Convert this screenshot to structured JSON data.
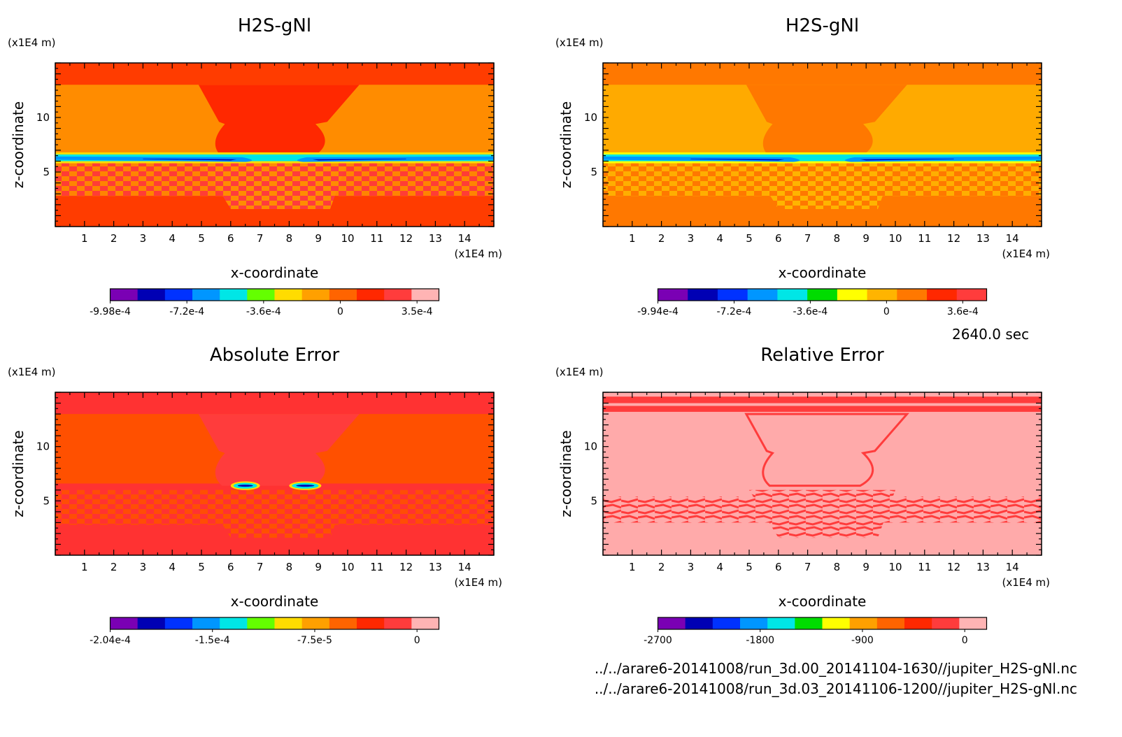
{
  "time_label": "2640.0 sec",
  "footer_lines": [
    "../../arare6-20141008/run_3d.00_20141104-1630//jupiter_H2S-gNl.nc",
    "../../arare6-20141008/run_3d.03_20141106-1200//jupiter_H2S-gNl.nc"
  ],
  "chart_data": [
    {
      "type": "heatmap",
      "title": "H2S-gNl",
      "xlabel": "x-coordinate",
      "ylabel": "z-coordinate",
      "x_unit": "(x1E4 m)",
      "y_unit": "(x1E4 m)",
      "xlim": [
        0,
        15
      ],
      "ylim": [
        0,
        15
      ],
      "x_ticks": [
        1,
        2,
        3,
        4,
        5,
        6,
        7,
        8,
        9,
        10,
        11,
        12,
        13,
        14
      ],
      "y_ticks": [
        5,
        10
      ],
      "colorbar": {
        "colors": [
          "#7a00b4",
          "#0000b4",
          "#0032ff",
          "#0096ff",
          "#00e6e6",
          "#64ff00",
          "#ffdc00",
          "#ffa000",
          "#ff6400",
          "#ff2800",
          "#ff3c3c",
          "#ffb4b4"
        ],
        "tick_labels": [
          "-9.98e-4",
          "-7.2e-4",
          "-3.6e-4",
          "0",
          "3.5e-4"
        ]
      }
    },
    {
      "type": "heatmap",
      "title": "H2S-gNl",
      "xlabel": "x-coordinate",
      "ylabel": "z-coordinate",
      "x_unit": "(x1E4 m)",
      "y_unit": "(x1E4 m)",
      "xlim": [
        0,
        15
      ],
      "ylim": [
        0,
        15
      ],
      "x_ticks": [
        1,
        2,
        3,
        4,
        5,
        6,
        7,
        8,
        9,
        10,
        11,
        12,
        13,
        14
      ],
      "y_ticks": [
        5,
        10
      ],
      "colorbar": {
        "colors": [
          "#7a00b4",
          "#0000b4",
          "#0032ff",
          "#0096ff",
          "#00e6e6",
          "#00dc00",
          "#ffff00",
          "#ffb400",
          "#ff7800",
          "#ff2800",
          "#ff3c3c"
        ],
        "tick_labels": [
          "-9.94e-4",
          "-7.2e-4",
          "-3.6e-4",
          "0",
          "3.6e-4"
        ]
      }
    },
    {
      "type": "heatmap",
      "title": "Absolute Error",
      "xlabel": "x-coordinate",
      "ylabel": "z-coordinate",
      "x_unit": "(x1E4 m)",
      "y_unit": "(x1E4 m)",
      "xlim": [
        0,
        15
      ],
      "ylim": [
        0,
        15
      ],
      "x_ticks": [
        1,
        2,
        3,
        4,
        5,
        6,
        7,
        8,
        9,
        10,
        11,
        12,
        13,
        14
      ],
      "y_ticks": [
        5,
        10
      ],
      "colorbar": {
        "colors": [
          "#7a00b4",
          "#0000b4",
          "#0032ff",
          "#0096ff",
          "#00e6e6",
          "#64ff00",
          "#ffdc00",
          "#ffa000",
          "#ff6400",
          "#ff2800",
          "#ff3c3c",
          "#ffb4b4"
        ],
        "tick_labels": [
          "-2.04e-4",
          "-1.5e-4",
          "-7.5e-5",
          "0"
        ]
      }
    },
    {
      "type": "heatmap",
      "title": "Relative Error",
      "xlabel": "x-coordinate",
      "ylabel": "z-coordinate",
      "x_unit": "(x1E4 m)",
      "y_unit": "(x1E4 m)",
      "xlim": [
        0,
        15
      ],
      "ylim": [
        0,
        15
      ],
      "x_ticks": [
        1,
        2,
        3,
        4,
        5,
        6,
        7,
        8,
        9,
        10,
        11,
        12,
        13,
        14
      ],
      "y_ticks": [
        5,
        10
      ],
      "colorbar": {
        "colors": [
          "#7a00b4",
          "#0000b4",
          "#0032ff",
          "#0096ff",
          "#00e6e6",
          "#00dc00",
          "#ffff00",
          "#ffa000",
          "#ff6400",
          "#ff2800",
          "#ff3c3c",
          "#ffb4b4"
        ],
        "tick_labels": [
          "-2700",
          "-1800",
          "-900",
          "0"
        ]
      }
    }
  ]
}
